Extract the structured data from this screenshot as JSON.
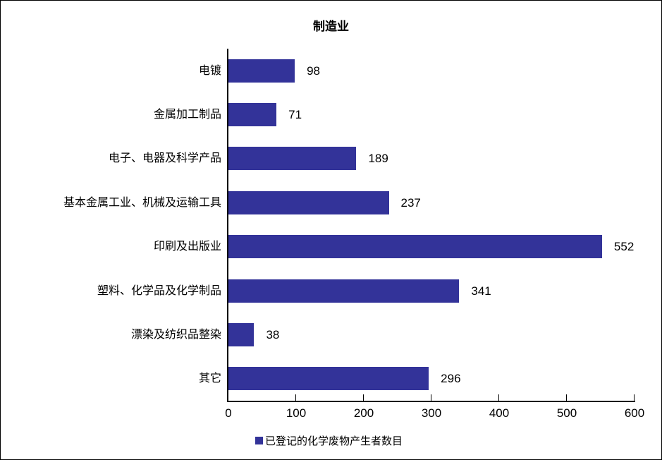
{
  "chart_title": "制造业",
  "legend": {
    "label": "已登记的化学废物产生者数目",
    "position": "bottom-center"
  },
  "colors": {
    "bar": "#333399",
    "axis": "#000000",
    "text": "#000000",
    "background": "#ffffff"
  },
  "chart_data": {
    "type": "bar",
    "orientation": "horizontal",
    "title": "制造业",
    "categories": [
      "电镀",
      "金属加工制品",
      "电子、电器及科学产品",
      "基本金属工业、机械及运输工具",
      "印刷及出版业",
      "塑料、化学品及化学制品",
      "漂染及纺织品整染",
      "其它"
    ],
    "values": [
      98,
      71,
      189,
      237,
      552,
      341,
      38,
      296
    ],
    "series_name": "已登记的化学废物产生者数目",
    "xlabel": "",
    "ylabel": "",
    "xlim": [
      0,
      600
    ],
    "x_ticks": [
      0,
      100,
      200,
      300,
      400,
      500,
      600
    ],
    "grid": false,
    "data_labels": true,
    "legend_position": "bottom"
  }
}
